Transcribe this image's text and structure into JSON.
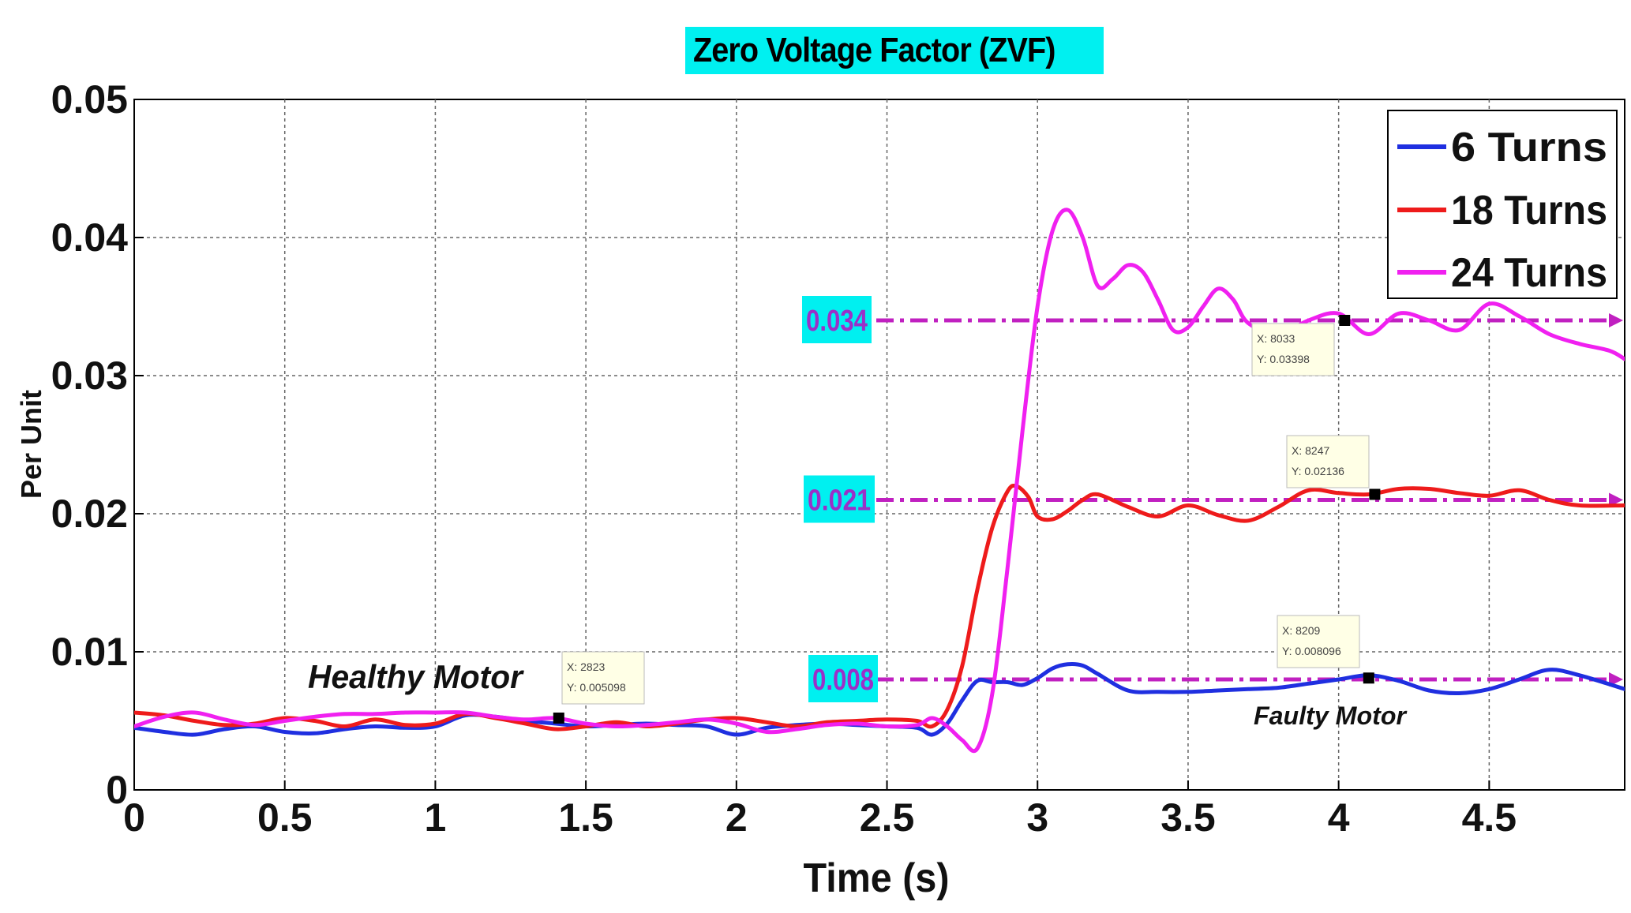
{
  "chart_data": {
    "type": "line",
    "title": "Zero Voltage Factor (ZVF)",
    "xlabel": "Time (s)",
    "ylabel": "Per Unit",
    "xlim": [
      0,
      4.95
    ],
    "ylim": [
      0,
      0.05
    ],
    "grid": true,
    "legend_position": "top-right",
    "x_ticks": [
      "0",
      "0.5",
      "1",
      "1.5",
      "2",
      "2.5",
      "3",
      "3.5",
      "4",
      "4.5"
    ],
    "y_ticks": [
      "0",
      "0.01",
      "0.02",
      "0.03",
      "0.04",
      "0.05"
    ],
    "series": [
      {
        "name": "6 Turns",
        "color": "#1f2fe0",
        "x": [
          0,
          0.1,
          0.2,
          0.3,
          0.4,
          0.5,
          0.6,
          0.7,
          0.8,
          0.9,
          1.0,
          1.1,
          1.2,
          1.3,
          1.4,
          1.5,
          1.6,
          1.7,
          1.8,
          1.9,
          2.0,
          2.1,
          2.2,
          2.3,
          2.4,
          2.5,
          2.6,
          2.65,
          2.7,
          2.75,
          2.8,
          2.85,
          2.9,
          2.95,
          3.0,
          3.05,
          3.1,
          3.15,
          3.2,
          3.3,
          3.4,
          3.5,
          3.6,
          3.7,
          3.8,
          3.9,
          4.0,
          4.1,
          4.2,
          4.3,
          4.4,
          4.5,
          4.6,
          4.7,
          4.8,
          4.95
        ],
        "y": [
          0.0045,
          0.0042,
          0.004,
          0.0044,
          0.0046,
          0.0042,
          0.0041,
          0.0044,
          0.0046,
          0.0045,
          0.0046,
          0.0054,
          0.0053,
          0.005,
          0.0048,
          0.0046,
          0.0047,
          0.0048,
          0.0047,
          0.0046,
          0.004,
          0.0045,
          0.0047,
          0.0048,
          0.0047,
          0.0046,
          0.0045,
          0.004,
          0.0048,
          0.0065,
          0.0079,
          0.0078,
          0.0078,
          0.0076,
          0.0081,
          0.0088,
          0.0091,
          0.009,
          0.0084,
          0.0072,
          0.0071,
          0.0071,
          0.0072,
          0.0073,
          0.0074,
          0.0077,
          0.008,
          0.0083,
          0.0079,
          0.0072,
          0.007,
          0.0073,
          0.008,
          0.0087,
          0.0083,
          0.0073
        ]
      },
      {
        "name": "18 Turns",
        "color": "#ee1b1b",
        "x": [
          0,
          0.1,
          0.2,
          0.3,
          0.4,
          0.5,
          0.6,
          0.7,
          0.8,
          0.9,
          1.0,
          1.1,
          1.2,
          1.3,
          1.4,
          1.5,
          1.6,
          1.7,
          1.8,
          1.9,
          2.0,
          2.1,
          2.2,
          2.3,
          2.4,
          2.5,
          2.6,
          2.65,
          2.7,
          2.75,
          2.8,
          2.85,
          2.9,
          2.93,
          2.97,
          3.0,
          3.05,
          3.1,
          3.15,
          3.2,
          3.3,
          3.4,
          3.5,
          3.6,
          3.7,
          3.8,
          3.9,
          4.0,
          4.1,
          4.2,
          4.3,
          4.4,
          4.5,
          4.6,
          4.7,
          4.8,
          4.95
        ],
        "y": [
          0.0056,
          0.0054,
          0.005,
          0.0047,
          0.0048,
          0.0052,
          0.005,
          0.0046,
          0.0051,
          0.0047,
          0.0048,
          0.0055,
          0.0052,
          0.0048,
          0.0044,
          0.0046,
          0.0049,
          0.0046,
          0.0048,
          0.0051,
          0.0052,
          0.0049,
          0.0046,
          0.0049,
          0.005,
          0.0051,
          0.005,
          0.0046,
          0.0058,
          0.009,
          0.0145,
          0.019,
          0.0216,
          0.022,
          0.0212,
          0.0198,
          0.0196,
          0.0202,
          0.021,
          0.0214,
          0.0205,
          0.0198,
          0.0206,
          0.0199,
          0.0195,
          0.0205,
          0.0217,
          0.0215,
          0.0214,
          0.0218,
          0.0218,
          0.0215,
          0.0213,
          0.0217,
          0.021,
          0.0206,
          0.0206
        ]
      },
      {
        "name": "24 Turns",
        "color": "#f020f0",
        "x": [
          0,
          0.1,
          0.2,
          0.3,
          0.4,
          0.5,
          0.6,
          0.7,
          0.8,
          0.9,
          1.0,
          1.1,
          1.2,
          1.3,
          1.4,
          1.5,
          1.6,
          1.7,
          1.8,
          1.9,
          2.0,
          2.1,
          2.2,
          2.3,
          2.4,
          2.5,
          2.6,
          2.65,
          2.7,
          2.75,
          2.8,
          2.85,
          2.9,
          2.95,
          3.0,
          3.05,
          3.1,
          3.15,
          3.2,
          3.25,
          3.3,
          3.35,
          3.4,
          3.45,
          3.5,
          3.55,
          3.6,
          3.65,
          3.7,
          3.8,
          3.9,
          4.0,
          4.1,
          4.2,
          4.3,
          4.4,
          4.5,
          4.6,
          4.7,
          4.8,
          4.9,
          4.95
        ],
        "y": [
          0.0046,
          0.0053,
          0.0056,
          0.0051,
          0.0047,
          0.005,
          0.0053,
          0.0055,
          0.0055,
          0.0056,
          0.0056,
          0.0056,
          0.0053,
          0.0051,
          0.0052,
          0.0048,
          0.0046,
          0.0047,
          0.0049,
          0.0051,
          0.0048,
          0.0042,
          0.0044,
          0.0047,
          0.0048,
          0.0046,
          0.0047,
          0.0052,
          0.0046,
          0.0036,
          0.003,
          0.007,
          0.016,
          0.026,
          0.035,
          0.0405,
          0.042,
          0.04,
          0.0365,
          0.037,
          0.038,
          0.0375,
          0.0355,
          0.0333,
          0.0335,
          0.035,
          0.0363,
          0.0355,
          0.0338,
          0.033,
          0.034,
          0.0345,
          0.033,
          0.0345,
          0.034,
          0.0333,
          0.0352,
          0.0343,
          0.033,
          0.0323,
          0.0318,
          0.0312
        ]
      }
    ],
    "reference_lines": [
      {
        "label": "0.034",
        "value": 0.034
      },
      {
        "label": "0.021",
        "value": 0.021
      },
      {
        "label": "0.008",
        "value": 0.008
      }
    ],
    "datatips": [
      {
        "x_text": "X: 2823",
        "y_text": "Y: 0.005098",
        "px": 1.41,
        "py": 0.0052
      },
      {
        "x_text": "X: 8033",
        "y_text": "Y: 0.03398",
        "px": 4.02,
        "py": 0.034
      },
      {
        "x_text": "X: 8247",
        "y_text": "Y: 0.02136",
        "px": 4.12,
        "py": 0.0214
      },
      {
        "x_text": "X: 8209",
        "y_text": "Y: 0.008096",
        "px": 4.1,
        "py": 0.0081
      }
    ],
    "annotations": [
      {
        "text": "Healthy Motor"
      },
      {
        "text": "Faulty Motor"
      }
    ],
    "colors": {
      "reference_line": "#c020c0",
      "value_box": "#00f0f0",
      "value_text": "#9b30c8",
      "title_box": "#00f0f0",
      "datatip_bg": "#ffffe6"
    }
  }
}
